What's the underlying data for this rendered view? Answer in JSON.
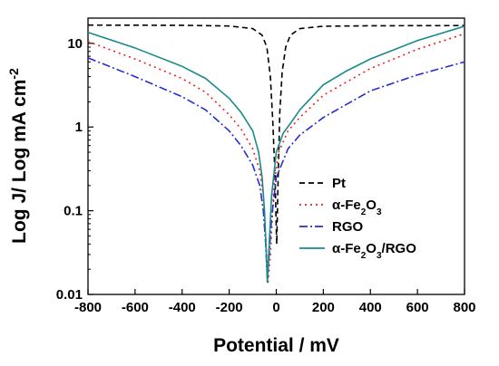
{
  "chart_data": {
    "type": "line",
    "xlabel": "Potential / mV",
    "ylabel": {
      "prefix": "Log J/ Log mA cm",
      "superscript": "-2"
    },
    "xlim": [
      -800,
      800
    ],
    "ylim": [
      0.01,
      20
    ],
    "y_scale": "log",
    "grid": false,
    "legend_position": "center-right",
    "x_ticks": [
      "-800",
      "-600",
      "-400",
      "-200",
      "0",
      "200",
      "400",
      "600",
      "800"
    ],
    "y_ticks": [
      {
        "value": 0.01,
        "label": "0.01"
      },
      {
        "value": 0.1,
        "label": "0.1"
      },
      {
        "value": 1,
        "label": "1"
      },
      {
        "value": 10,
        "label": "10"
      }
    ],
    "series": [
      {
        "name": "Pt",
        "name_parts": [
          {
            "text": "Pt"
          }
        ],
        "color": "#000000",
        "dash": "6,4",
        "x": [
          -800,
          -400,
          -200,
          -100,
          -60,
          -40,
          -25,
          -15,
          -5,
          0,
          2,
          8,
          15,
          25,
          40,
          60,
          100,
          200,
          400,
          800
        ],
        "y": [
          16.5,
          16.4,
          16.1,
          15.0,
          12.5,
          9.0,
          4.0,
          1.2,
          0.25,
          0.06,
          0.04,
          0.25,
          1.5,
          4.5,
          9.0,
          12.5,
          15.0,
          16.0,
          16.2,
          16.3
        ]
      },
      {
        "name": "α-Fe2O3",
        "name_parts": [
          {
            "text": "α-Fe"
          },
          {
            "text": "2",
            "sub": true
          },
          {
            "text": "O"
          },
          {
            "text": "3",
            "sub": true
          }
        ],
        "color": "#e8211e",
        "dash": "2,4",
        "x": [
          -800,
          -600,
          -400,
          -300,
          -200,
          -150,
          -100,
          -70,
          -55,
          -45,
          -35,
          -25,
          -10,
          10,
          50,
          100,
          200,
          400,
          600,
          800
        ],
        "y": [
          10.5,
          6.5,
          3.8,
          2.6,
          1.4,
          0.95,
          0.55,
          0.3,
          0.15,
          0.05,
          0.014,
          0.03,
          0.2,
          0.5,
          0.9,
          1.3,
          2.4,
          5.0,
          8.5,
          13.0
        ]
      },
      {
        "name": "RGO",
        "name_parts": [
          {
            "text": "RGO"
          }
        ],
        "color": "#2b2bd4",
        "dash": "9,3,2,3",
        "x": [
          -800,
          -600,
          -400,
          -300,
          -200,
          -150,
          -100,
          -70,
          -55,
          -45,
          -38,
          -30,
          -20,
          0,
          50,
          100,
          200,
          400,
          600,
          800
        ],
        "y": [
          6.7,
          4.0,
          2.3,
          1.6,
          0.9,
          0.6,
          0.35,
          0.2,
          0.1,
          0.04,
          0.015,
          0.03,
          0.08,
          0.25,
          0.55,
          0.8,
          1.3,
          2.7,
          4.2,
          6.0
        ]
      },
      {
        "name": "α-Fe2O3/RGO",
        "name_parts": [
          {
            "text": "α-Fe"
          },
          {
            "text": "2",
            "sub": true
          },
          {
            "text": "O"
          },
          {
            "text": "3",
            "sub": true
          },
          {
            "text": "/RGO"
          }
        ],
        "color": "#1a8a8a",
        "dash": "",
        "x": [
          -800,
          -600,
          -400,
          -300,
          -200,
          -150,
          -100,
          -75,
          -60,
          -50,
          -42,
          -38,
          -30,
          -20,
          0,
          30,
          60,
          100,
          200,
          300,
          400,
          600,
          800
        ],
        "y": [
          13.5,
          8.8,
          5.3,
          3.8,
          2.2,
          1.5,
          0.9,
          0.5,
          0.25,
          0.1,
          0.03,
          0.014,
          0.04,
          0.15,
          0.5,
          0.85,
          1.1,
          1.6,
          3.2,
          4.7,
          6.5,
          10.8,
          16.0
        ]
      }
    ]
  }
}
